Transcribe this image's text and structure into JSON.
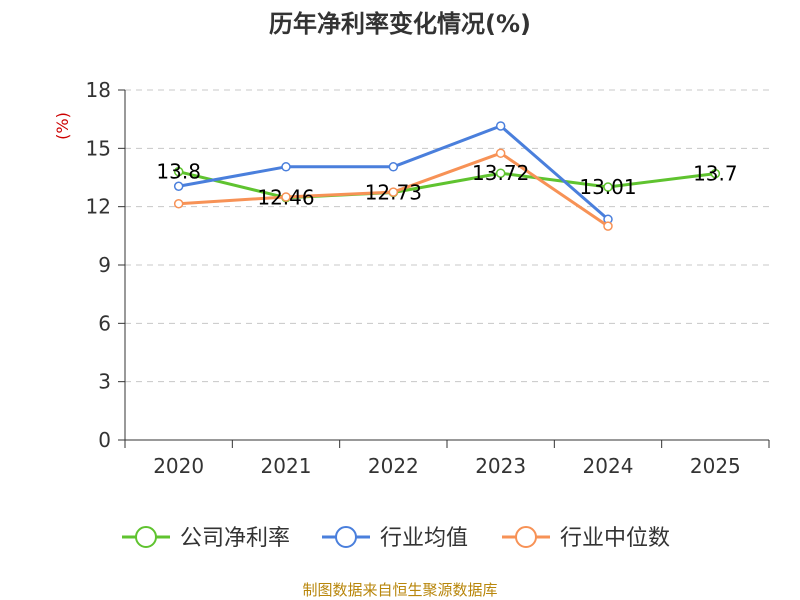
{
  "chart_data": {
    "type": "line",
    "title": "历年净利率变化情况(%)",
    "ylabel": "(%)",
    "categories": [
      "2020",
      "2021",
      "2022",
      "2023",
      "2024",
      "2025"
    ],
    "ylim": [
      0,
      18
    ],
    "yticks": [
      0,
      3,
      6,
      9,
      12,
      15,
      18
    ],
    "grid": true,
    "legend_position": "bottom",
    "series": [
      {
        "name": "公司净利率",
        "color": "#5fc32f",
        "values": [
          13.8,
          12.46,
          12.73,
          13.72,
          13.01,
          13.7
        ],
        "labels": [
          "13.8",
          "12.46",
          "12.73",
          "13.72",
          "13.01",
          "13.7"
        ]
      },
      {
        "name": "行业均值",
        "color": "#4a7fdc",
        "values": [
          13.05,
          14.05,
          14.05,
          16.15,
          11.35,
          null
        ]
      },
      {
        "name": "行业中位数",
        "color": "#f79256",
        "values": [
          12.15,
          12.5,
          12.75,
          14.75,
          11.0,
          null
        ]
      }
    ]
  },
  "footer": {
    "source": "制图数据来自恒生聚源数据库"
  }
}
